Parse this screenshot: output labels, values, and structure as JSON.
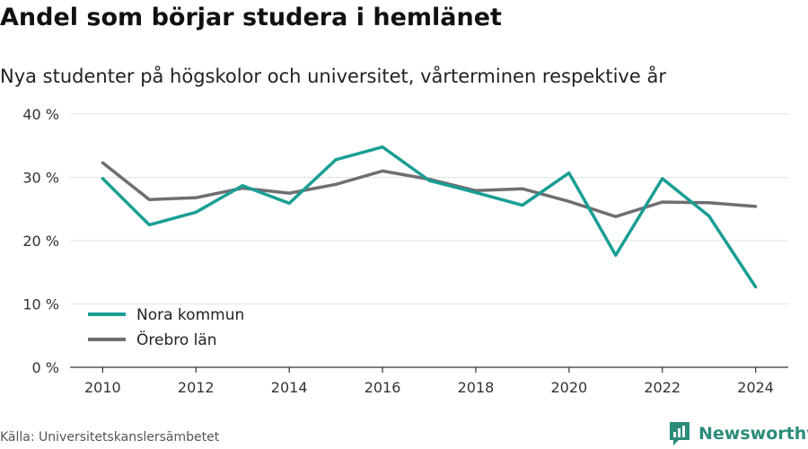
{
  "title": "Andel som börjar studera i hemlänet",
  "subtitle": "Nya studenter på högskolor och universitet, vårterminen respektive år",
  "source": "Källa: Universitetskanslersämbetet",
  "brand": {
    "name": "Newsworthy",
    "icon": "newsworthy-logo-icon",
    "color": "#2b8c7a"
  },
  "chart_data": {
    "type": "line",
    "x": [
      2010,
      2011,
      2012,
      2013,
      2014,
      2015,
      2016,
      2017,
      2018,
      2019,
      2020,
      2021,
      2022,
      2023,
      2024
    ],
    "series": [
      {
        "name": "Nora kommun",
        "color": "#1a9e94",
        "values": [
          29.8,
          22.5,
          24.5,
          28.7,
          25.9,
          32.8,
          34.8,
          29.5,
          27.6,
          25.6,
          30.7,
          17.7,
          29.8,
          23.9,
          12.7
        ]
      },
      {
        "name": "Örebro län",
        "color": "#6e6e73",
        "values": [
          32.3,
          26.5,
          26.8,
          28.3,
          27.5,
          28.9,
          31.0,
          29.7,
          27.9,
          28.2,
          26.2,
          23.8,
          26.1,
          26.0,
          25.4
        ]
      }
    ],
    "xticks": [
      "2010",
      "2012",
      "2014",
      "2016",
      "2018",
      "2020",
      "2022",
      "2024"
    ],
    "yticks": [
      "0 %",
      "10 %",
      "20 %",
      "30 %",
      "40 %"
    ],
    "ylim": [
      0,
      40
    ],
    "xlim": [
      2009.3,
      2024.7
    ],
    "grid": true,
    "legend_position": "bottom-left"
  }
}
